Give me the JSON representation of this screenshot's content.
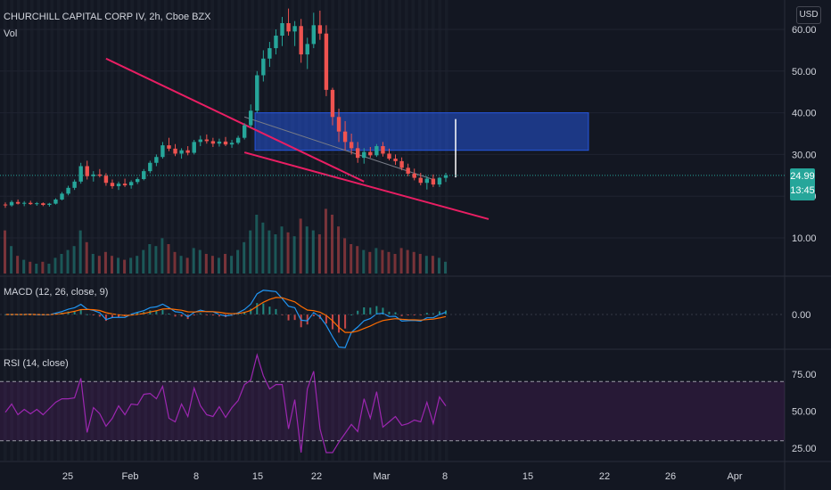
{
  "header": {
    "symbol_line": "CHURCHILL CAPITAL CORP IV, 2h, Cboe BZX",
    "volume_label": "Vol"
  },
  "currency_button": "USD",
  "price_axis": {
    "ticks": [
      {
        "value": 60,
        "label": "60.00"
      },
      {
        "value": 50,
        "label": "50.00"
      },
      {
        "value": 40,
        "label": "40.00"
      },
      {
        "value": 30,
        "label": "30.00"
      },
      {
        "value": 20,
        "label": "20.00"
      },
      {
        "value": 10,
        "label": "10.00"
      }
    ],
    "last_price": "24.99",
    "countdown": "13:45"
  },
  "macd": {
    "label": "MACD (12, 26, close, 9)",
    "axis_label": "0.00"
  },
  "rsi": {
    "label": "RSI (14, close)",
    "ticks": [
      "75.00",
      "50.00",
      "25.00"
    ],
    "upper_band": 70,
    "lower_band": 30
  },
  "time_axis": {
    "ticks": [
      "25",
      "Feb",
      "8",
      "15",
      "22",
      "Mar",
      "8",
      "15",
      "22",
      "26",
      "Apr"
    ]
  },
  "colors": {
    "background": "#131722",
    "up": "#26a69a",
    "down": "#ef5350",
    "rectangle": "#2962ff",
    "trendline": "#e91e63",
    "rsi_line": "#9c27b0",
    "macd_line": "#2196f3",
    "signal_line": "#ff6d00"
  },
  "chart_data": {
    "type": "candlestick",
    "candles": [
      [
        18,
        18.5,
        17.2,
        17.8
      ],
      [
        17.8,
        19,
        17.5,
        18.6
      ],
      [
        18.6,
        19.2,
        18,
        18.2
      ],
      [
        18.2,
        18.8,
        17.6,
        18.4
      ],
      [
        18.4,
        18.9,
        17.9,
        18.1
      ],
      [
        18.1,
        18.6,
        17.7,
        18.3
      ],
      [
        18.3,
        18.5,
        17.6,
        17.9
      ],
      [
        17.9,
        18.4,
        17.5,
        18.2
      ],
      [
        18.2,
        19.5,
        18,
        19.2
      ],
      [
        19.2,
        21,
        19,
        20.6
      ],
      [
        20.6,
        22.5,
        20.2,
        22
      ],
      [
        22,
        24,
        21.5,
        23.5
      ],
      [
        23.5,
        28,
        23,
        27.2
      ],
      [
        27.2,
        28.5,
        24,
        24.8
      ],
      [
        24.8,
        26,
        23.5,
        25.2
      ],
      [
        25.2,
        26.5,
        24.5,
        24.9
      ],
      [
        24.9,
        25.5,
        22.5,
        23.2
      ],
      [
        23.2,
        24,
        21.8,
        22.4
      ],
      [
        22.4,
        23.5,
        21.5,
        23
      ],
      [
        23,
        24.2,
        22.2,
        22.6
      ],
      [
        22.6,
        23.8,
        21.8,
        23.4
      ],
      [
        23.4,
        24.5,
        22.9,
        24.1
      ],
      [
        24.1,
        26.5,
        23.8,
        26
      ],
      [
        26,
        28.5,
        25.5,
        28
      ],
      [
        28,
        30,
        27.2,
        29.4
      ],
      [
        29.4,
        33,
        29,
        32.2
      ],
      [
        32.2,
        34,
        30.8,
        31.4
      ],
      [
        31.4,
        32.5,
        29.6,
        30.2
      ],
      [
        30.2,
        31.5,
        29,
        31
      ],
      [
        31,
        32,
        29.8,
        30.4
      ],
      [
        30.4,
        33.5,
        30,
        33
      ],
      [
        33,
        34.5,
        32,
        33.6
      ],
      [
        33.6,
        34.8,
        32.6,
        33.2
      ],
      [
        33.2,
        34,
        31.8,
        32.6
      ],
      [
        32.6,
        33.8,
        31.9,
        33.1
      ],
      [
        33.1,
        34.2,
        32,
        32.4
      ],
      [
        32.4,
        33.5,
        31.6,
        32.8
      ],
      [
        32.8,
        34.5,
        32.4,
        34
      ],
      [
        34,
        37.5,
        33.6,
        37
      ],
      [
        37,
        42,
        36.5,
        40.5
      ],
      [
        40.5,
        50,
        40,
        49
      ],
      [
        49,
        55,
        47.5,
        53
      ],
      [
        53,
        57,
        51,
        55.5
      ],
      [
        55.5,
        60,
        54,
        58.5
      ],
      [
        58.5,
        63,
        56,
        61.5
      ],
      [
        61.5,
        65,
        58.5,
        59.5
      ],
      [
        59.5,
        62,
        56,
        60.8
      ],
      [
        60.8,
        62.5,
        52,
        54
      ],
      [
        54,
        58,
        50.5,
        56.5
      ],
      [
        56.5,
        64,
        55.5,
        61
      ],
      [
        61,
        64.5,
        57.5,
        59
      ],
      [
        59,
        61,
        44,
        45.5
      ],
      [
        45.5,
        46,
        37,
        39
      ],
      [
        39,
        41,
        33,
        35.5
      ],
      [
        35.5,
        38,
        31,
        33
      ],
      [
        33,
        35,
        30,
        31.5
      ],
      [
        31.5,
        33,
        28,
        29.2
      ],
      [
        29.2,
        31.5,
        27.8,
        30.6
      ],
      [
        30.6,
        31.8,
        29.2,
        29.8
      ],
      [
        29.8,
        32.5,
        29.4,
        32
      ],
      [
        32,
        33,
        29.5,
        30.2
      ],
      [
        30.2,
        31.4,
        28.6,
        29
      ],
      [
        29,
        30,
        27.5,
        28.4
      ],
      [
        28.4,
        29.3,
        26.2,
        26.8
      ],
      [
        26.8,
        27.8,
        24.8,
        25.4
      ],
      [
        25.4,
        26.6,
        23.8,
        24.4
      ],
      [
        24.4,
        25.6,
        22.6,
        23.2
      ],
      [
        23.2,
        24.8,
        21.6,
        24.2
      ],
      [
        24.2,
        25.2,
        22.2,
        22.8
      ],
      [
        22.8,
        24.6,
        22.2,
        24.4
      ],
      [
        24.4,
        25.6,
        23.4,
        24.99
      ]
    ],
    "volume": [
      22,
      14,
      9,
      7,
      6,
      5,
      6,
      5,
      8,
      10,
      12,
      14,
      22,
      16,
      10,
      9,
      11,
      9,
      8,
      7,
      8,
      9,
      12,
      15,
      14,
      18,
      15,
      11,
      9,
      8,
      13,
      12,
      10,
      9,
      8,
      10,
      9,
      12,
      16,
      22,
      30,
      26,
      22,
      20,
      24,
      21,
      19,
      28,
      24,
      22,
      20,
      33,
      30,
      24,
      18,
      15,
      14,
      12,
      11,
      13,
      12,
      11,
      10,
      13,
      12,
      11,
      10,
      9,
      9,
      8,
      6
    ],
    "macd": {
      "zero": 0,
      "note_hidden": ""
    },
    "rsi_bands": [
      30,
      70
    ],
    "annotations": {
      "rectangle": {
        "price_top": 40,
        "price_bottom": 31
      },
      "upper_trendline": [
        [
          16,
          53
        ],
        [
          38,
          27.5
        ]
      ],
      "lower_trendline": [
        [
          22,
          30.5
        ],
        [
          43,
          14.5
        ]
      ]
    }
  }
}
